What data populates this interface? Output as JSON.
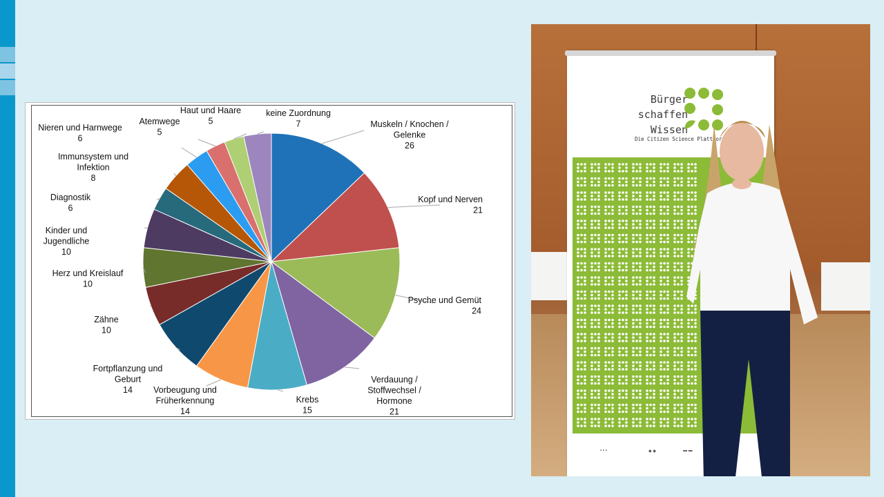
{
  "chart_data": {
    "type": "pie",
    "title": "",
    "slices": [
      {
        "lines": [
          "Muskeln / Knochen /",
          "Gelenke"
        ],
        "value": 26,
        "color": "#1f72b7"
      },
      {
        "lines": [
          "Kopf und Nerven"
        ],
        "value": 21,
        "color": "#c0504d"
      },
      {
        "lines": [
          "Psyche und Gemüt"
        ],
        "value": 24,
        "color": "#9bbb59"
      },
      {
        "lines": [
          "Verdauung /",
          "Stoffwechsel /",
          "Hormone"
        ],
        "value": 21,
        "color": "#8064a2"
      },
      {
        "lines": [
          "Krebs"
        ],
        "value": 15,
        "color": "#4bacc6"
      },
      {
        "lines": [
          "Vorbeugung und",
          "Früherkennung"
        ],
        "value": 14,
        "color": "#f79646"
      },
      {
        "lines": [
          "Fortpflanzung  und",
          "Geburt"
        ],
        "value": 14,
        "color": "#0f4a6e"
      },
      {
        "lines": [
          "Zähne"
        ],
        "value": 10,
        "color": "#772c2a"
      },
      {
        "lines": [
          "Herz und Kreislauf"
        ],
        "value": 10,
        "color": "#5f7530"
      },
      {
        "lines": [
          "Kinder und",
          "Jugendliche"
        ],
        "value": 10,
        "color": "#4d3b62"
      },
      {
        "lines": [
          "Diagnostik"
        ],
        "value": 6,
        "color": "#276a7c"
      },
      {
        "lines": [
          "Immunsystem  und",
          "Infektion"
        ],
        "value": 8,
        "color": "#b65708"
      },
      {
        "lines": [
          "Nieren und Harnwege"
        ],
        "value": 6,
        "color": "#2c9cf0"
      },
      {
        "lines": [
          "Atemwege"
        ],
        "value": 5,
        "color": "#d9706d"
      },
      {
        "lines": [
          "Haut und Haare"
        ],
        "value": 5,
        "color": "#aecf73"
      },
      {
        "lines": [
          "keine Zuordnung"
        ],
        "value": 7,
        "color": "#9d86bd"
      }
    ]
  },
  "photo": {
    "banner_title_lines": [
      "Bürger",
      "schaffen",
      "Wissen"
    ],
    "banner_subtitle": "Die Citizen Science Plattform",
    "brand_green": "#8cbb37"
  },
  "theme": {
    "background": "#daeef5",
    "stripe": "#0a98cc"
  }
}
